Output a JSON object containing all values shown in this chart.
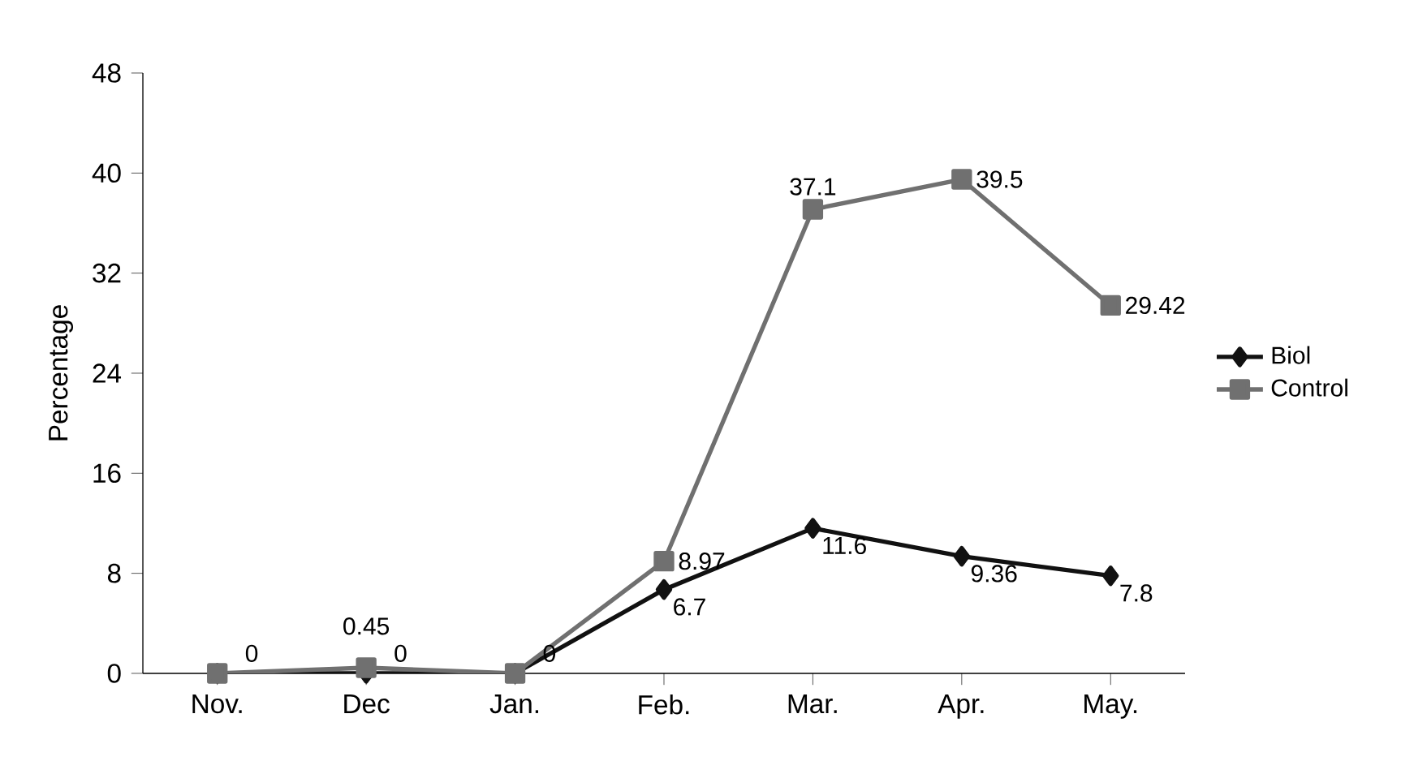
{
  "chart_data": {
    "type": "line",
    "ylabel": "Percentage",
    "categories": [
      "Nov.",
      "Dec",
      "Jan.",
      "Feb.",
      "Mar.",
      "Apr.",
      "May."
    ],
    "ylim": [
      0,
      48
    ],
    "yticks": [
      0,
      8,
      16,
      24,
      32,
      40,
      48
    ],
    "grid": false,
    "legend": "right",
    "line_style": "solid",
    "series": [
      {
        "name": "Biol",
        "color": "#111111",
        "marker": "diamond",
        "values": [
          0,
          0,
          0,
          6.7,
          11.6,
          9.36,
          7.8
        ],
        "value_labels": [
          null,
          "0",
          null,
          "6.7",
          "11.6",
          "9.36",
          "7.8"
        ]
      },
      {
        "name": "Control",
        "color": "#707070",
        "marker": "square",
        "values": [
          0,
          0.45,
          0,
          8.97,
          37.1,
          39.5,
          29.42
        ],
        "value_labels": [
          "0",
          "0.45",
          "0",
          "8.97",
          "37.1",
          "39.5",
          "29.42"
        ]
      }
    ]
  }
}
